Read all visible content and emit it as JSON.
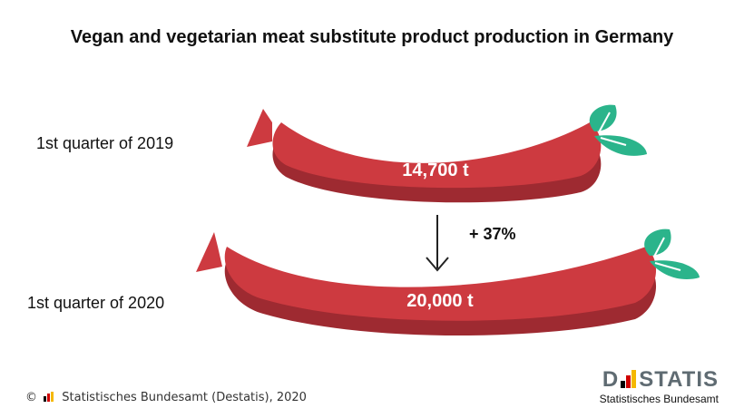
{
  "chart_data": {
    "type": "bar",
    "title": "Vegan and vegetarian meat substitute product production in Germany",
    "categories": [
      "1st quarter of 2019",
      "1st quarter of 2020"
    ],
    "values": [
      14700,
      20000
    ],
    "unit": "t",
    "value_labels": [
      "14,700 t",
      "20,000 t"
    ],
    "change_label": "+ 37%"
  },
  "footer": {
    "copyright_symbol": "©",
    "source": "Statistisches Bundesamt (Destatis), 2020"
  },
  "logo": {
    "word_left": "D",
    "word_right": "STATIS",
    "subtitle": "Statistisches Bundesamt"
  },
  "colors": {
    "sausage_main": "#cd3a40",
    "sausage_shadow": "#9e2a31",
    "leaf": "#2bb48b",
    "flag_black": "#000000",
    "flag_red": "#d00000",
    "flag_gold": "#f5b800"
  }
}
